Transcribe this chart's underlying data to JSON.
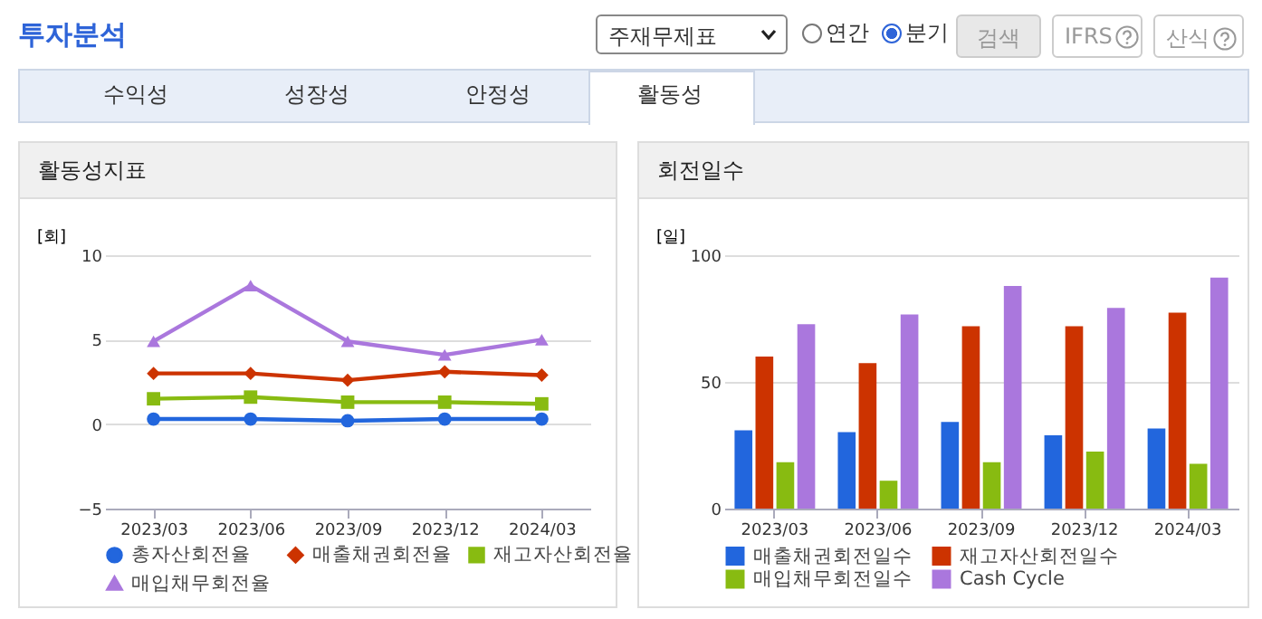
{
  "chart_data": [
    {
      "type": "other",
      "title": "투자분석",
      "annotations": [
        "주재무제표",
        "연간",
        "분기",
        "검색",
        "IFRS",
        "산식",
        "수익성",
        "성장성",
        "안정성",
        "활동성"
      ]
    },
    {
      "type": "line",
      "title": "활동성지표",
      "ylabel": "[회]",
      "categories": [
        "2023/03",
        "2023/06",
        "2023/09",
        "2023/12",
        "2024/03"
      ],
      "ylim": [
        -5,
        10
      ],
      "yticks": [
        -5,
        0,
        5,
        10
      ],
      "grid": "y",
      "legend": "bottom",
      "series": [
        {
          "name": "총자산회전율",
          "color": "#2266dd",
          "marker": "circle",
          "values": [
            0.3,
            0.3,
            0.2,
            0.3,
            0.3
          ]
        },
        {
          "name": "매출채권회전율",
          "color": "#cc3300",
          "marker": "diamond",
          "values": [
            3.0,
            3.0,
            2.6,
            3.1,
            2.9
          ]
        },
        {
          "name": "재고자산회전율",
          "color": "#88bb11",
          "marker": "square",
          "values": [
            1.5,
            1.6,
            1.3,
            1.3,
            1.2
          ]
        },
        {
          "name": "매입채무회전율",
          "color": "#aa77dd",
          "marker": "triangle",
          "values": [
            4.9,
            8.2,
            4.9,
            4.1,
            5.0
          ]
        }
      ]
    },
    {
      "type": "bar",
      "title": "회전일수",
      "ylabel": "[일]",
      "categories": [
        "2023/03",
        "2023/06",
        "2023/09",
        "2023/12",
        "2024/03"
      ],
      "ylim": [
        0,
        100
      ],
      "yticks": [
        0,
        50,
        100
      ],
      "grid": "y",
      "legend": "bottom",
      "series": [
        {
          "name": "매출채권회전일수",
          "color": "#2266dd",
          "values": [
            30.9,
            30.2,
            34.2,
            28.9,
            31.6
          ]
        },
        {
          "name": "재고자산회전일수",
          "color": "#cc3300",
          "values": [
            60.0,
            57.4,
            72.0,
            72.0,
            77.3
          ]
        },
        {
          "name": "매입채무회전일수",
          "color": "#88bb11",
          "values": [
            18.3,
            11.0,
            18.3,
            22.5,
            17.7
          ]
        },
        {
          "name": "Cash Cycle",
          "color": "#aa77dd",
          "values": [
            72.8,
            76.6,
            87.9,
            79.2,
            91.2
          ]
        }
      ]
    }
  ]
}
